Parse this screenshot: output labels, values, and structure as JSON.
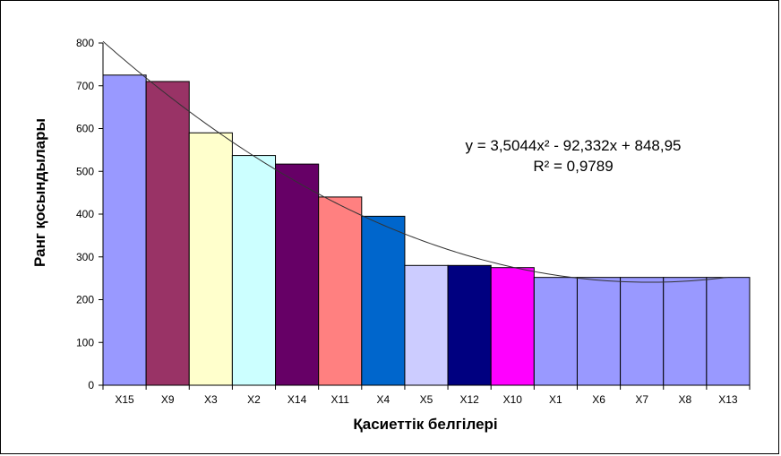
{
  "chart_data": {
    "type": "bar",
    "xlabel": "Қасиеттік белгілері",
    "ylabel": "Ранг қосындылары",
    "ylim": [
      0,
      800
    ],
    "yticks": [
      0,
      100,
      200,
      300,
      400,
      500,
      600,
      700,
      800
    ],
    "grid": false,
    "legend": "none",
    "categories": [
      "X15",
      "X9",
      "X3",
      "X2",
      "X14",
      "X11",
      "X4",
      "X5",
      "X12",
      "X10",
      "X1",
      "X6",
      "X7",
      "X8",
      "X13"
    ],
    "values": [
      725,
      710,
      590,
      537,
      517,
      440,
      395,
      280,
      280,
      275,
      252,
      252,
      252,
      252,
      252
    ],
    "colors": [
      "#9999ff",
      "#993366",
      "#ffffcc",
      "#ccffff",
      "#660066",
      "#ff8080",
      "#0066cc",
      "#ccccff",
      "#000080",
      "#ff00ff",
      "#9999ff",
      "#9999ff",
      "#9999ff",
      "#9999ff",
      "#9999ff"
    ],
    "trendline": {
      "type": "polynomial",
      "coefficients": {
        "a": 3.5044,
        "b": -92.332,
        "c": 848.95
      },
      "equation_text": "y = 3,5044x² - 92,332x + 848,95",
      "r2_text": "R² = 0,9789"
    }
  }
}
